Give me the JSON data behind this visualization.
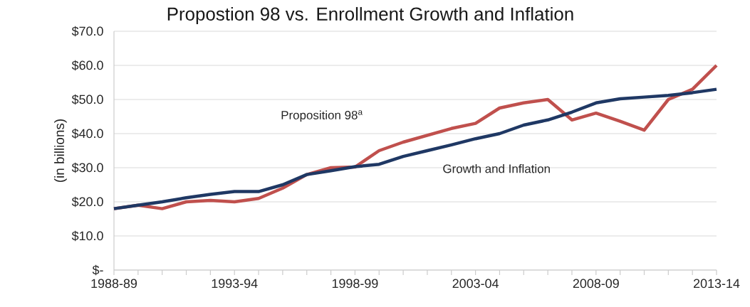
{
  "chart_data": {
    "type": "line",
    "title": "Propostion 98 vs. Enrollment Growth and Inflation",
    "ylabel": "(in billions)",
    "categories": [
      "1988-89",
      null,
      null,
      null,
      null,
      "1993-94",
      null,
      null,
      null,
      null,
      "1998-99",
      null,
      null,
      null,
      null,
      "2003-04",
      null,
      null,
      null,
      null,
      "2008-09",
      null,
      null,
      null,
      null,
      "2013-14"
    ],
    "series": [
      {
        "name": "Proposition 98$^{a}$",
        "color": "#c0504d",
        "values": [
          18,
          19,
          18,
          20,
          20.4,
          20,
          21,
          24,
          28,
          30,
          30.2,
          35,
          37.5,
          39.5,
          41.5,
          43,
          47.5,
          49,
          50,
          44,
          46,
          43.6,
          41,
          50,
          53,
          60
        ]
      },
      {
        "name": "Growth and Inflation",
        "color": "#1f3864",
        "values": [
          18,
          19,
          20,
          21.2,
          22.2,
          23,
          23,
          25,
          28,
          29.1,
          30.3,
          31,
          33.3,
          35,
          36.7,
          38.5,
          40,
          42.5,
          44,
          46.3,
          49,
          50.2,
          50.7,
          51.2,
          52,
          53
        ]
      }
    ],
    "ylim": [
      0,
      70
    ],
    "yticks": [
      {
        "value": 0,
        "label": "$-"
      },
      {
        "value": 10,
        "label": "$10.0"
      },
      {
        "value": 20,
        "label": "$20.0"
      },
      {
        "value": 30,
        "label": "$30.0"
      },
      {
        "value": 40,
        "label": "$40.0"
      },
      {
        "value": 50,
        "label": "$50.0"
      },
      {
        "value": 60,
        "label": "$60.0"
      },
      {
        "value": 70,
        "label": "$70.0"
      }
    ],
    "grid": "y",
    "legend": false,
    "marker": "none",
    "line_style": "solid"
  }
}
